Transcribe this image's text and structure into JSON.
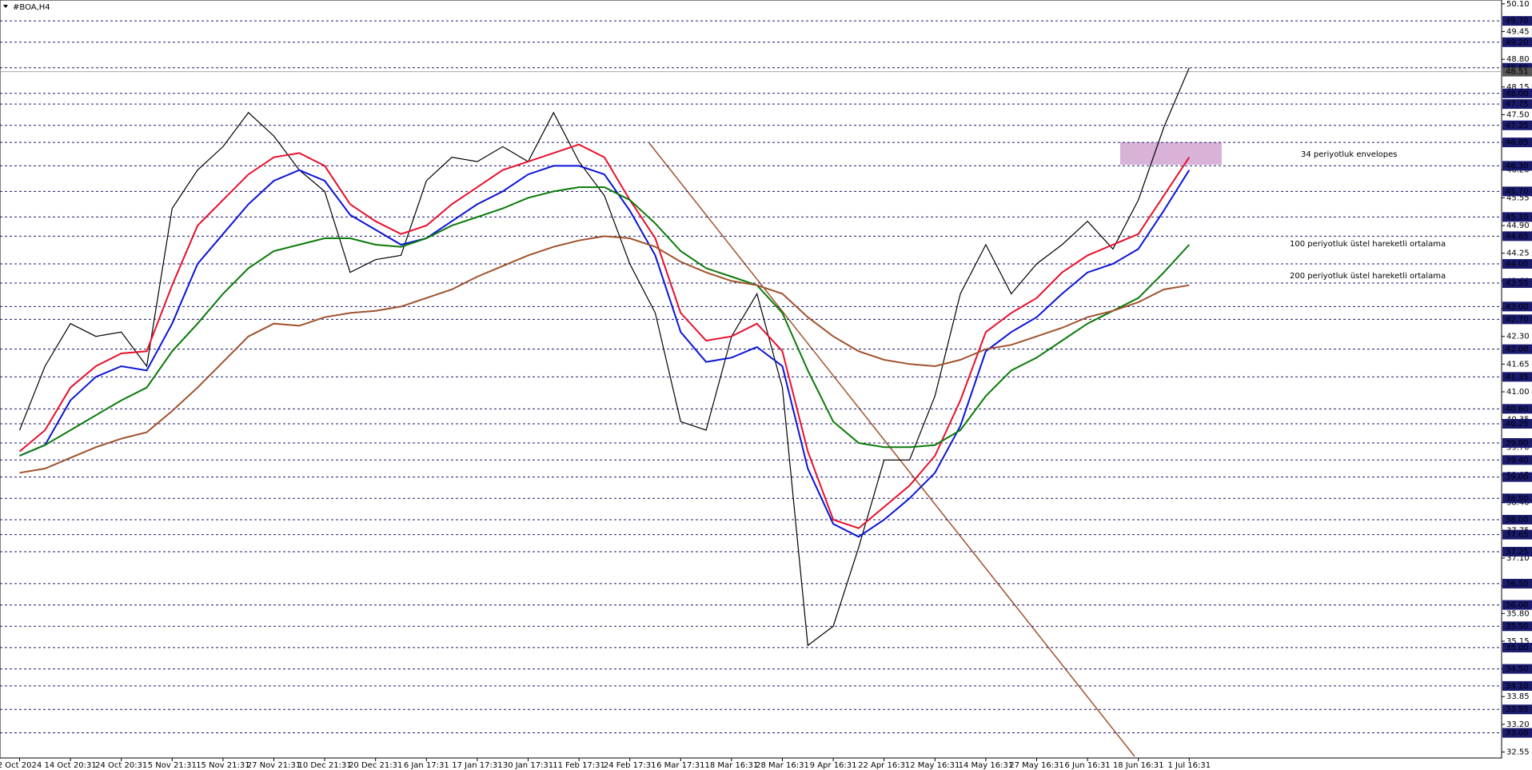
{
  "chart_data": {
    "type": "line",
    "title": "#BOA,H4",
    "categories": [
      "2 Oct 2024",
      null,
      "14 Oct 20:31",
      null,
      "24 Oct 20:31",
      null,
      "5 Nov 21:31",
      null,
      "15 Nov 21:31",
      null,
      "27 Nov 21:31",
      null,
      "10 Dec 21:31",
      null,
      "20 Dec 21:31",
      null,
      "6 Jan 17:31",
      null,
      "17 Jan 17:31",
      null,
      "30 Jan 17:31",
      null,
      "11 Feb 17:31",
      null,
      "24 Feb 17:31",
      null,
      "6 Mar 17:31",
      null,
      "18 Mar 16:31",
      null,
      "28 Mar 16:31",
      null,
      "9 Apr 16:31",
      null,
      "22 Apr 16:31",
      null,
      "2 May 16:31",
      null,
      "14 May 16:31",
      null,
      "27 May 16:31",
      null,
      "6 Jun 16:31",
      null,
      "18 Jun 16:31",
      null,
      "1 Jul 16:31"
    ],
    "series": [
      {
        "color": "#000000",
        "values": [
          40.1,
          41.6,
          42.6,
          42.3,
          42.4,
          41.6,
          45.3,
          46.2,
          46.75,
          47.55,
          47.0,
          46.2,
          45.7,
          43.8,
          44.1,
          44.2,
          45.95,
          46.5,
          46.4,
          46.75,
          46.4,
          47.55,
          46.4,
          45.6,
          44.0,
          42.85,
          40.3,
          40.1,
          42.3,
          43.3,
          41.1,
          35.05,
          35.5,
          37.35,
          39.4,
          39.4,
          40.9,
          43.3,
          44.45,
          43.3,
          44.0,
          44.45,
          45.0,
          44.35,
          45.5,
          47.2,
          48.6
        ]
      },
      {
        "color": "#e8102c",
        "values": [
          39.6,
          40.1,
          41.1,
          41.6,
          41.9,
          41.95,
          43.5,
          44.9,
          45.5,
          46.1,
          46.5,
          46.6,
          46.3,
          45.4,
          45.0,
          44.7,
          44.9,
          45.4,
          45.8,
          46.2,
          46.4,
          46.6,
          46.8,
          46.5,
          45.5,
          44.6,
          42.85,
          42.2,
          42.3,
          42.6,
          41.95,
          39.6,
          38.0,
          37.8,
          38.3,
          38.8,
          39.5,
          40.8,
          42.4,
          42.85,
          43.2,
          43.8,
          44.2,
          44.45,
          44.7,
          45.6,
          46.5
        ]
      },
      {
        "color": "#0a14d8",
        "values": [
          39.5,
          39.75,
          40.8,
          41.35,
          41.6,
          41.5,
          42.6,
          44.0,
          44.7,
          45.4,
          45.95,
          46.2,
          45.95,
          45.15,
          44.8,
          44.45,
          44.6,
          45.0,
          45.4,
          45.7,
          46.1,
          46.3,
          46.3,
          46.1,
          45.25,
          44.2,
          42.4,
          41.7,
          41.8,
          42.05,
          41.6,
          39.2,
          37.9,
          37.6,
          38.0,
          38.5,
          39.1,
          40.2,
          41.95,
          42.4,
          42.75,
          43.3,
          43.8,
          44.0,
          44.35,
          45.25,
          46.2
        ]
      },
      {
        "color": "#0a7a0a",
        "values": [
          39.5,
          39.75,
          40.1,
          40.45,
          40.8,
          41.1,
          41.95,
          42.6,
          43.3,
          43.9,
          44.3,
          44.45,
          44.6,
          44.6,
          44.45,
          44.4,
          44.6,
          44.9,
          45.1,
          45.3,
          45.55,
          45.7,
          45.8,
          45.8,
          45.5,
          44.95,
          44.3,
          43.9,
          43.7,
          43.5,
          42.85,
          41.5,
          40.3,
          39.8,
          39.7,
          39.7,
          39.75,
          40.1,
          40.9,
          41.5,
          41.8,
          42.2,
          42.6,
          42.9,
          43.2,
          43.8,
          44.45
        ]
      },
      {
        "color": "#a0522d",
        "values": [
          39.1,
          39.2,
          39.45,
          39.7,
          39.9,
          40.05,
          40.55,
          41.1,
          41.7,
          42.3,
          42.6,
          42.55,
          42.75,
          42.85,
          42.9,
          43.0,
          43.2,
          43.4,
          43.7,
          43.95,
          44.2,
          44.4,
          44.55,
          44.65,
          44.6,
          44.4,
          44.05,
          43.8,
          43.6,
          43.5,
          43.3,
          42.75,
          42.3,
          41.95,
          41.75,
          41.65,
          41.6,
          41.75,
          42.0,
          42.1,
          42.3,
          42.5,
          42.75,
          42.9,
          43.1,
          43.4,
          43.5
        ]
      }
    ],
    "ylim": [
      32.41,
      50.19
    ],
    "yticks": [
      32.55,
      {
        "value": 33.2,
        "label": "33.20"
      },
      33.85,
      34.5,
      35.15,
      {
        "value": 35.8,
        "label": "35.80"
      },
      36.45,
      {
        "value": 37.1,
        "label": "37.10"
      },
      37.75,
      {
        "value": 38.4,
        "label": "38.40"
      },
      39.05,
      {
        "value": 39.7,
        "label": "39.70"
      },
      40.35,
      {
        "value": 41,
        "label": "41.00"
      },
      41.65,
      {
        "value": 42.3,
        "label": "42.30"
      },
      42.95,
      {
        "value": 43.6,
        "label": "43.60"
      },
      44.25,
      {
        "value": 44.9,
        "label": "44.90"
      },
      45.55,
      {
        "value": 46.2,
        "label": "46.20"
      },
      46.85,
      {
        "value": 47.5,
        "label": "47.50"
      },
      48.15,
      {
        "value": 48.8,
        "label": "48.80"
      },
      49.45,
      {
        "value": 50.1,
        "label": "50.10"
      }
    ],
    "levels": [
      {
        "value": 49.7,
        "label": "49.70"
      },
      {
        "value": 49.2,
        "label": "49.20"
      },
      {
        "value": 48.6,
        "label": "48.60"
      },
      {
        "value": 48,
        "label": "48.00"
      },
      47.75,
      47.25,
      46.85,
      {
        "value": 46.3,
        "label": "46.30"
      },
      {
        "value": 45.7,
        "label": "45.70"
      },
      {
        "value": 45.1,
        "label": "45.10"
      },
      44.65,
      {
        "value": 44,
        "label": "44.00"
      },
      43.55,
      {
        "value": 43,
        "label": "43.00"
      },
      {
        "value": 42.7,
        "label": "42.70"
      },
      {
        "value": 42,
        "label": "42.00"
      },
      41.35,
      {
        "value": 40.6,
        "label": "40.60"
      },
      40.25,
      {
        "value": 39.8,
        "label": "39.80"
      },
      {
        "value": 39.4,
        "label": "39.40"
      },
      {
        "value": 39,
        "label": "39.00"
      },
      {
        "value": 38.5,
        "label": "38.50"
      },
      {
        "value": 38,
        "label": "38.00"
      },
      37.65,
      37.25,
      {
        "value": 36.5,
        "label": "36.50"
      },
      {
        "value": 36,
        "label": "36.00"
      },
      {
        "value": 35.5,
        "label": "35.50"
      },
      {
        "value": 35,
        "label": "35.00"
      },
      {
        "value": 34.5,
        "label": "34.50"
      },
      {
        "value": 34.1,
        "label": "34.10"
      },
      33.55,
      {
        "value": 33,
        "label": "33.00"
      }
    ],
    "level_color": "#1a1a6e",
    "current_price": 48.51,
    "annotations": [
      {
        "text": "34 periyotluk envelopes",
        "color": "#1a1ab0"
      },
      {
        "text": "100 periyotluk üstel hareketli ortalama",
        "color": "#0a7a0a"
      },
      {
        "text": "200 periyotluk üstel hareketli ortalama",
        "color": "#a0522d"
      }
    ]
  }
}
